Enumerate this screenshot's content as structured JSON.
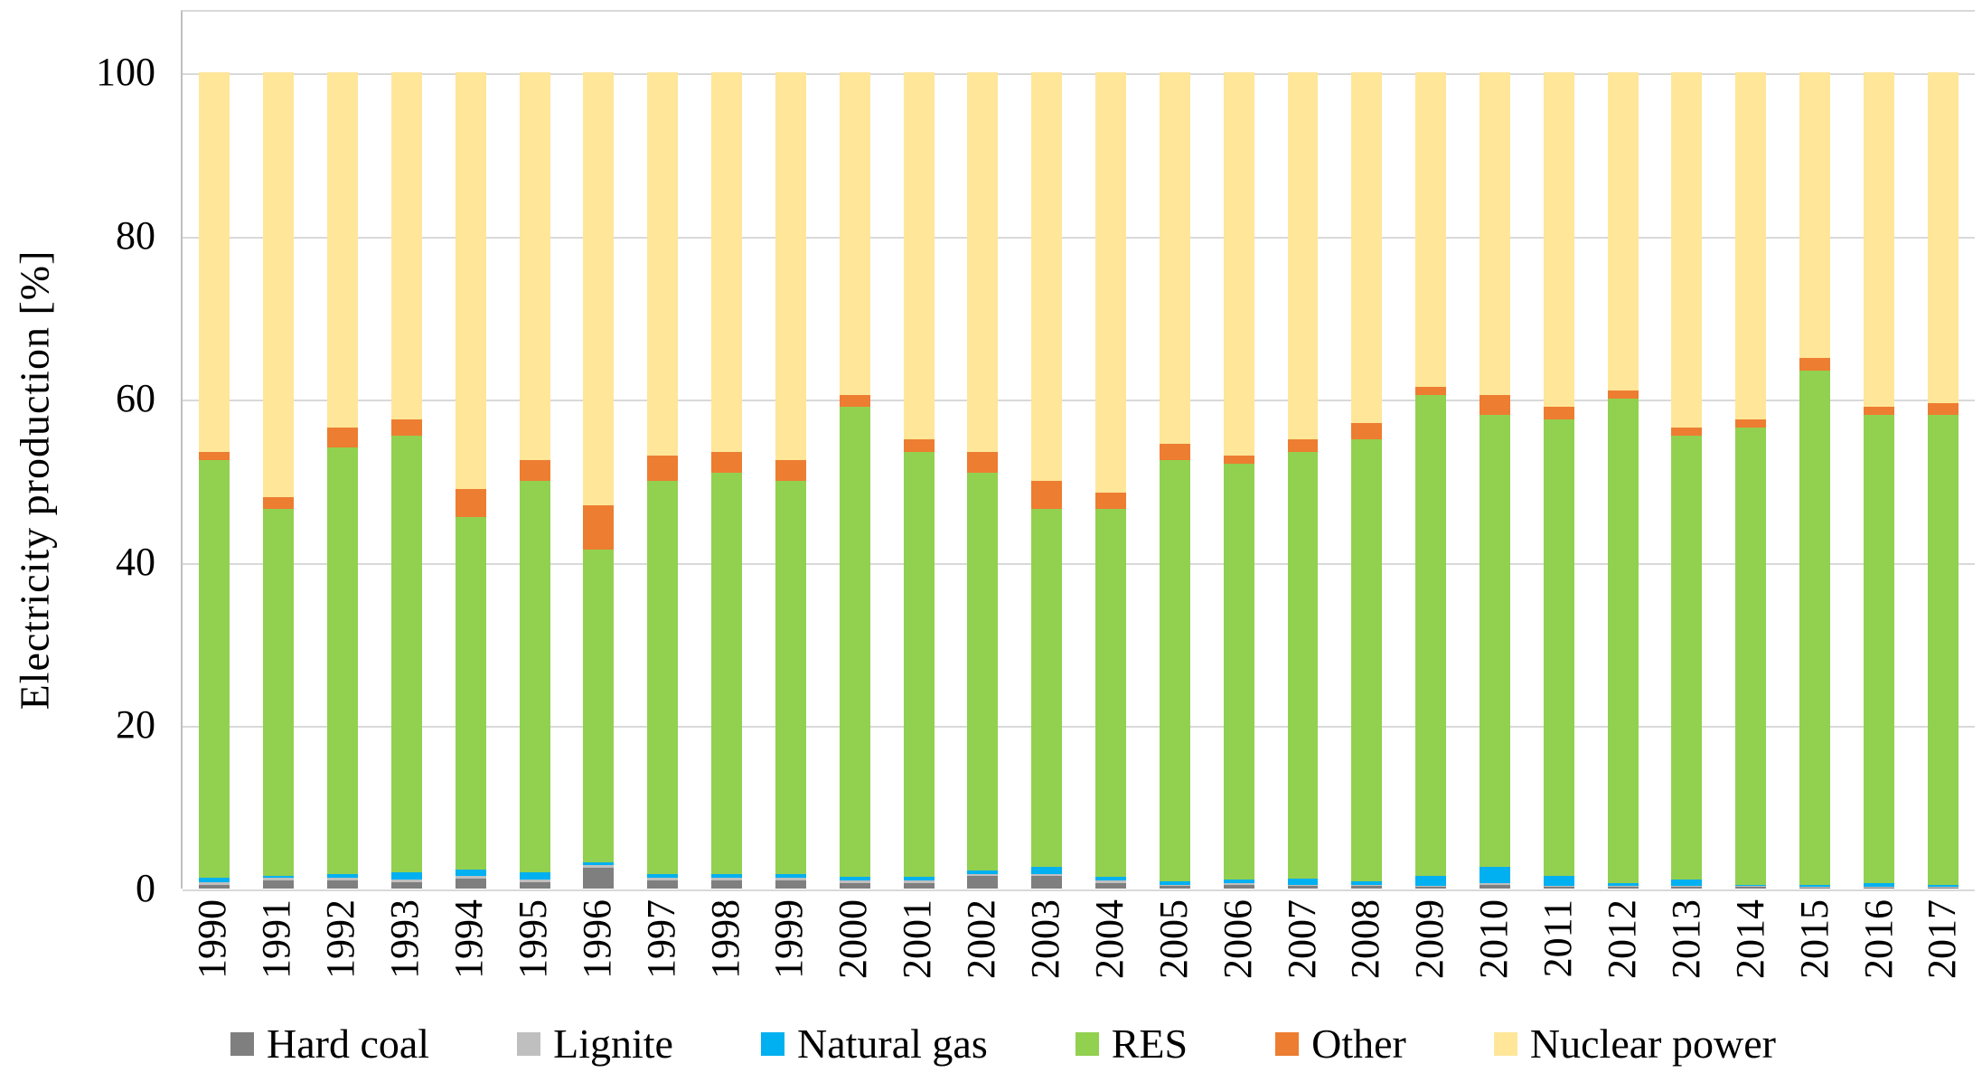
{
  "chart_data": {
    "type": "bar",
    "stacked": true,
    "title": "",
    "xlabel": "",
    "ylabel": "Electricity production [%]",
    "ylim": [
      0,
      100
    ],
    "yticks": [
      100,
      80,
      60,
      40,
      20,
      0
    ],
    "grid": true,
    "legend_position": "bottom",
    "categories": [
      "1990",
      "1991",
      "1992",
      "1993",
      "1994",
      "1995",
      "1996",
      "1997",
      "1998",
      "1999",
      "2000",
      "2001",
      "2002",
      "2003",
      "2004",
      "2005",
      "2006",
      "2007",
      "2008",
      "2009",
      "2010",
      "2011",
      "2012",
      "2013",
      "2014",
      "2015",
      "2016",
      "2017"
    ],
    "series": [
      {
        "name": "Hard coal",
        "color": "#7f7f7f",
        "values": [
          0.5,
          1.0,
          1.0,
          0.8,
          1.2,
          0.8,
          2.6,
          1.0,
          1.0,
          1.0,
          0.7,
          0.7,
          1.5,
          1.5,
          0.7,
          0.3,
          0.5,
          0.3,
          0.3,
          0.2,
          0.5,
          0.2,
          0.2,
          0.2,
          0.2,
          0.1,
          0.1,
          0.1
        ]
      },
      {
        "name": "Lignite",
        "color": "#bfbfbf",
        "values": [
          0.3,
          0.3,
          0.3,
          0.3,
          0.3,
          0.3,
          0.3,
          0.3,
          0.3,
          0.3,
          0.3,
          0.3,
          0.3,
          0.3,
          0.3,
          0.2,
          0.2,
          0.2,
          0.2,
          0.1,
          0.2,
          0.1,
          0.1,
          0.1,
          0.1,
          0.1,
          0.1,
          0.1
        ]
      },
      {
        "name": "Natural gas",
        "color": "#00b0f0",
        "values": [
          0.5,
          0.3,
          0.5,
          0.9,
          0.8,
          0.9,
          0.3,
          0.5,
          0.5,
          0.5,
          0.4,
          0.4,
          0.4,
          0.9,
          0.4,
          0.4,
          0.4,
          0.7,
          0.4,
          1.2,
          2.0,
          1.2,
          0.4,
          0.8,
          0.2,
          0.2,
          0.5,
          0.2
        ]
      },
      {
        "name": "RES",
        "color": "#92d050",
        "values": [
          51.2,
          44.9,
          52.2,
          53.5,
          43.2,
          48.0,
          38.3,
          48.2,
          49.2,
          48.2,
          57.6,
          52.1,
          48.8,
          43.8,
          45.1,
          51.6,
          50.9,
          52.3,
          54.1,
          59.0,
          55.3,
          56.0,
          59.3,
          54.4,
          56.0,
          63.1,
          57.3,
          57.6
        ]
      },
      {
        "name": "Other",
        "color": "#ed7d31",
        "values": [
          1.0,
          1.5,
          2.5,
          2.0,
          3.5,
          2.5,
          5.5,
          3.0,
          2.5,
          2.5,
          1.5,
          1.5,
          2.5,
          3.5,
          2.0,
          2.0,
          1.0,
          1.5,
          2.0,
          1.0,
          2.5,
          1.5,
          1.0,
          1.0,
          1.0,
          1.5,
          1.0,
          1.5
        ]
      },
      {
        "name": "Nuclear power",
        "color": "#ffe699",
        "values": [
          46.5,
          52.0,
          43.5,
          42.5,
          51.0,
          47.5,
          53.0,
          47.0,
          46.5,
          47.5,
          39.5,
          45.0,
          46.5,
          50.0,
          51.5,
          45.5,
          47.0,
          45.0,
          43.0,
          38.5,
          39.5,
          41.0,
          39.0,
          43.5,
          42.5,
          35.0,
          41.0,
          40.5
        ]
      }
    ]
  }
}
